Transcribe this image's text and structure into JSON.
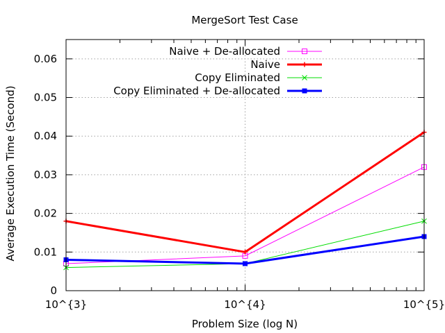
{
  "chart_data": {
    "type": "line",
    "title": "MergeSort Test Case",
    "xlabel": "Problem Size (log N)",
    "ylabel": "Average Execution Time (Second)",
    "x_scale": "log",
    "x": [
      1000,
      10000,
      100000
    ],
    "x_tick_labels": [
      "10^{3}",
      "10^{4}",
      "10^{5}"
    ],
    "xlim": [
      1000,
      100000
    ],
    "ylim": [
      0,
      0.065
    ],
    "y_ticks": [
      0,
      0.01,
      0.02,
      0.03,
      0.04,
      0.05,
      0.06
    ],
    "y_tick_labels": [
      "0",
      "0.01",
      "0.02",
      "0.03",
      "0.04",
      "0.05",
      "0.06"
    ],
    "grid": true,
    "legend_position": "top-center",
    "series": [
      {
        "name": "Naive + De-allocated",
        "values": [
          0.007,
          0.009,
          0.032
        ],
        "color": "#ff00ff",
        "marker": "square-open",
        "line_width": "thin"
      },
      {
        "name": "Naive",
        "values": [
          0.018,
          0.01,
          0.041
        ],
        "color": "#ff0000",
        "marker": "plus",
        "line_width": "thick"
      },
      {
        "name": "Copy Eliminated",
        "values": [
          0.006,
          0.007,
          0.018
        ],
        "color": "#00dd00",
        "marker": "cross",
        "line_width": "thin"
      },
      {
        "name": "Copy Eliminated + De-allocated",
        "values": [
          0.008,
          0.007,
          0.014
        ],
        "color": "#0000ff",
        "marker": "filled-square",
        "line_width": "thick"
      }
    ]
  }
}
